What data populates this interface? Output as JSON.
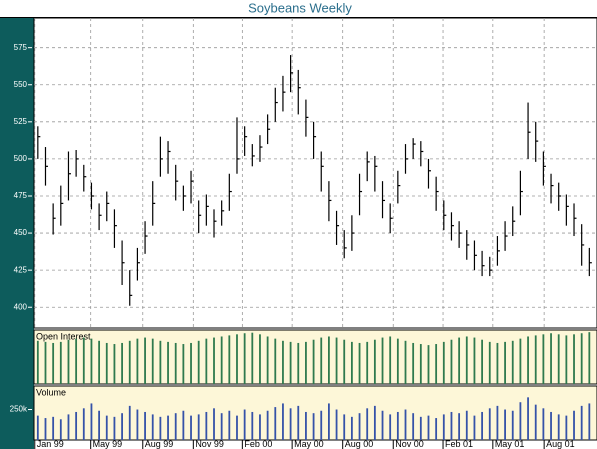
{
  "chart_data": [
    {
      "type": "ohlc",
      "title": "Soybeans Weekly",
      "color": "#000000",
      "background": "#ffffff",
      "grid": true,
      "xlim": [
        -0.5,
        73
      ],
      "ylim": [
        386,
        595
      ],
      "yticks": [
        400,
        425,
        450,
        475,
        500,
        525,
        550,
        575
      ],
      "xticks": [
        -0.4,
        6.9,
        13.7,
        20.3,
        26.7,
        33.2,
        39.8,
        46.4,
        52.9,
        59.4,
        66.1
      ],
      "series": [
        {
          "name": "High",
          "values": [
            522,
            508,
            470,
            482,
            505,
            506,
            496,
            484,
            470,
            478,
            466,
            445,
            425,
            440,
            458,
            485,
            515,
            512,
            496,
            482,
            492,
            472,
            476,
            466,
            472,
            490,
            528,
            522,
            510,
            516,
            530,
            548,
            556,
            570,
            560,
            540,
            525,
            505,
            485,
            465,
            452,
            462,
            490,
            505,
            502,
            485,
            470,
            492,
            510,
            514,
            512,
            500,
            488,
            472,
            464,
            458,
            452,
            445,
            438,
            434,
            448,
            458,
            468,
            492,
            538,
            525,
            505,
            490,
            484,
            476,
            470,
            456,
            440
          ]
        },
        {
          "name": "Low",
          "values": [
            500,
            482,
            449,
            455,
            472,
            488,
            478,
            466,
            452,
            458,
            440,
            415,
            401,
            418,
            436,
            455,
            488,
            490,
            472,
            465,
            470,
            450,
            455,
            447,
            455,
            465,
            490,
            502,
            495,
            498,
            510,
            525,
            532,
            545,
            530,
            515,
            500,
            478,
            458,
            442,
            433,
            438,
            462,
            485,
            478,
            460,
            450,
            470,
            490,
            500,
            495,
            480,
            465,
            452,
            445,
            440,
            432,
            425,
            421,
            421,
            428,
            438,
            448,
            462,
            500,
            498,
            482,
            470,
            465,
            455,
            448,
            428,
            421
          ]
        },
        {
          "name": "Close",
          "values": [
            515,
            495,
            460,
            470,
            490,
            500,
            488,
            475,
            462,
            470,
            455,
            430,
            408,
            430,
            448,
            470,
            500,
            505,
            485,
            475,
            485,
            462,
            468,
            458,
            465,
            478,
            500,
            515,
            502,
            508,
            520,
            538,
            545,
            558,
            548,
            528,
            515,
            495,
            472,
            455,
            440,
            450,
            478,
            498,
            495,
            472,
            460,
            482,
            500,
            510,
            505,
            492,
            478,
            462,
            455,
            450,
            442,
            435,
            428,
            425,
            438,
            448,
            458,
            478,
            518,
            512,
            495,
            482,
            475,
            468,
            460,
            442,
            430
          ]
        }
      ]
    },
    {
      "type": "bar",
      "title": "Open Interest",
      "color": "#2f7a4e",
      "background": "#fdf7d8",
      "xlim": [
        -0.5,
        73
      ],
      "ylim": [
        0,
        100
      ],
      "values": [
        80,
        78,
        76,
        78,
        82,
        84,
        86,
        84,
        80,
        76,
        74,
        76,
        80,
        84,
        86,
        84,
        80,
        78,
        76,
        74,
        76,
        80,
        84,
        86,
        88,
        90,
        92,
        94,
        95,
        92,
        88,
        84,
        80,
        78,
        76,
        78,
        82,
        86,
        88,
        86,
        82,
        78,
        76,
        78,
        82,
        86,
        88,
        84,
        80,
        76,
        74,
        72,
        74,
        78,
        82,
        86,
        88,
        86,
        82,
        78,
        76,
        78,
        80,
        84,
        88,
        90,
        92,
        94,
        92,
        90,
        92,
        94,
        96
      ]
    },
    {
      "type": "bar",
      "title": "Volume",
      "color": "#3552a8",
      "background": "#fdf7d8",
      "xlim": [
        -0.5,
        73
      ],
      "ylim": [
        0,
        443000
      ],
      "yticks": [
        {
          "value": 250000,
          "label": "250k"
        }
      ],
      "xticks": [
        {
          "value": -0.4,
          "label": "Jan 99"
        },
        {
          "value": 6.9,
          "label": "May 99"
        },
        {
          "value": 13.7,
          "label": "Aug 99"
        },
        {
          "value": 20.3,
          "label": "Nov 99"
        },
        {
          "value": 26.7,
          "label": "Feb 00"
        },
        {
          "value": 33.2,
          "label": "May 00"
        },
        {
          "value": 39.8,
          "label": "Aug 00"
        },
        {
          "value": 46.4,
          "label": "Nov 00"
        },
        {
          "value": 52.9,
          "label": "Feb 01"
        },
        {
          "value": 59.4,
          "label": "May 01"
        },
        {
          "value": 66.1,
          "label": "Aug 01"
        }
      ],
      "values": [
        200000,
        180000,
        190000,
        170000,
        210000,
        230000,
        260000,
        300000,
        240000,
        200000,
        190000,
        220000,
        280000,
        250000,
        230000,
        210000,
        190000,
        200000,
        220000,
        240000,
        200000,
        210000,
        230000,
        260000,
        220000,
        240000,
        200000,
        250000,
        230000,
        210000,
        240000,
        270000,
        300000,
        260000,
        280000,
        230000,
        220000,
        240000,
        300000,
        250000,
        210000,
        190000,
        220000,
        260000,
        280000,
        240000,
        210000,
        230000,
        250000,
        220000,
        190000,
        200000,
        180000,
        210000,
        230000,
        220000,
        240000,
        200000,
        230000,
        260000,
        280000,
        250000,
        240000,
        310000,
        350000,
        290000,
        260000,
        230000,
        210000,
        200000,
        240000,
        280000,
        300000
      ]
    }
  ]
}
